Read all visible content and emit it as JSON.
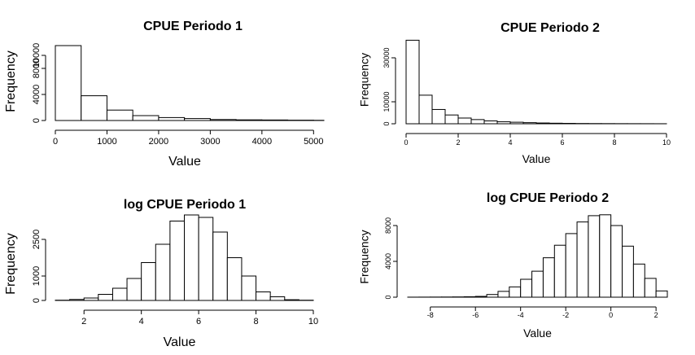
{
  "chart_data": [
    {
      "type": "bar",
      "title": "CPUE Periodo 1",
      "xlabel": "Value",
      "ylabel": "Frequency",
      "xlim": [
        0,
        5200
      ],
      "ylim": [
        0,
        12000
      ],
      "xticks": [
        "0",
        "1000",
        "2000",
        "3000",
        "4000",
        "5000"
      ],
      "yticks": [
        "0",
        "4000",
        "8000",
        "10000"
      ],
      "bin_edges": [
        0,
        500,
        1000,
        1500,
        2000,
        2500,
        3000,
        3500,
        4000,
        4500,
        5000,
        5200
      ],
      "values": [
        11500,
        3800,
        1600,
        750,
        450,
        300,
        150,
        100,
        80,
        50,
        30
      ]
    },
    {
      "type": "bar",
      "title": "CPUE Periodo 2",
      "xlabel": "Value",
      "ylabel": "Frequency",
      "xlim": [
        0,
        10
      ],
      "ylim": [
        0,
        40000
      ],
      "xticks": [
        "0",
        "2",
        "4",
        "6",
        "8",
        "10"
      ],
      "yticks": [
        "0",
        "10000",
        "30000"
      ],
      "bin_edges": [
        0,
        0.5,
        1,
        1.5,
        2,
        2.5,
        3,
        3.5,
        4,
        4.5,
        5,
        5.5,
        6,
        6.5,
        7,
        7.5,
        8,
        8.5,
        9,
        9.5,
        10
      ],
      "values": [
        38000,
        13000,
        6500,
        4000,
        2600,
        1900,
        1300,
        900,
        700,
        500,
        350,
        250,
        180,
        120,
        90,
        70,
        50,
        40,
        30,
        20
      ]
    },
    {
      "type": "bar",
      "title": "log CPUE Periodo 1",
      "xlabel": "Value",
      "ylabel": "Frequency",
      "xlim": [
        1,
        10
      ],
      "ylim": [
        0,
        3000
      ],
      "xticks": [
        "2",
        "4",
        "6",
        "8",
        "10"
      ],
      "yticks": [
        "0",
        "1000",
        "2500"
      ],
      "bin_edges": [
        1,
        1.5,
        2,
        2.5,
        3,
        3.5,
        4,
        4.5,
        5,
        5.5,
        6,
        6.5,
        7,
        7.5,
        8,
        8.5,
        9,
        9.5,
        10
      ],
      "values": [
        10,
        40,
        100,
        250,
        500,
        900,
        1550,
        2300,
        3250,
        3500,
        3400,
        2800,
        1750,
        1000,
        350,
        150,
        30,
        10
      ]
    },
    {
      "type": "bar",
      "title": "log CPUE Periodo 2",
      "xlabel": "Value",
      "ylabel": "Frequency",
      "xlim": [
        -9,
        2.5
      ],
      "ylim": [
        0,
        9000
      ],
      "xticks": [
        "-8",
        "-6",
        "-4",
        "-2",
        "0",
        "2"
      ],
      "yticks": [
        "0",
        "4000",
        "8000"
      ],
      "bin_edges": [
        -9,
        -8.5,
        -8,
        -7.5,
        -7,
        -6.5,
        -6,
        -5.5,
        -5,
        -4.5,
        -4,
        -3.5,
        -3,
        -2.5,
        -2,
        -1.5,
        -1,
        -0.5,
        0,
        0.5,
        1,
        1.5,
        2,
        2.5
      ],
      "values": [
        5,
        10,
        15,
        20,
        30,
        50,
        90,
        300,
        650,
        1150,
        2000,
        2900,
        4400,
        5800,
        7100,
        8400,
        9100,
        9200,
        8000,
        5700,
        3700,
        2100,
        700
      ]
    }
  ]
}
